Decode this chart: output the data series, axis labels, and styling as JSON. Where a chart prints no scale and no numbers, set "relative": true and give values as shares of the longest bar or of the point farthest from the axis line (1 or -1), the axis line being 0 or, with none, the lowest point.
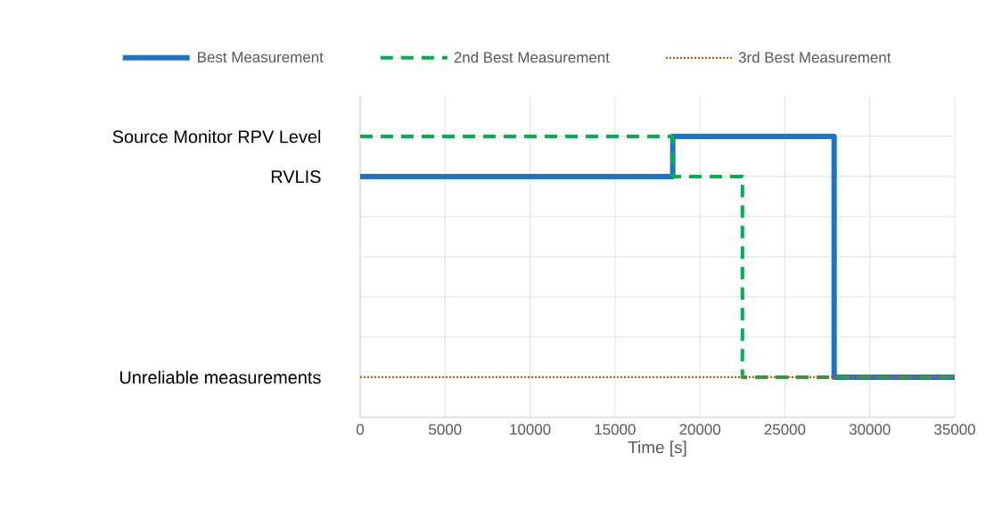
{
  "chart_data": {
    "type": "line",
    "xlabel": "Time [s]",
    "relative": true,
    "xlim": [
      0,
      35000
    ],
    "xticks": [
      0,
      5000,
      10000,
      15000,
      20000,
      25000,
      30000,
      35000
    ],
    "annotations": [
      "Source Monitor RPV Level",
      "RVLIS",
      "Unreliable measurements"
    ],
    "grid": true,
    "legend": "top",
    "series": [
      {
        "name": "Best Measurement",
        "color": "#1f72c4",
        "line_style": "solid",
        "x": [
          0,
          18400,
          18400,
          27900,
          27900,
          35000
        ],
        "values": [
          0.857,
          0.857,
          1,
          1,
          0.143,
          0.143
        ]
      },
      {
        "name": "2nd Best Measurement",
        "color": "#00b050",
        "line_style": "dashed",
        "x": [
          0,
          18400,
          18400,
          22500,
          22500,
          35000
        ],
        "values": [
          1,
          1,
          0.857,
          0.857,
          0.143,
          0.143
        ]
      },
      {
        "name": "3rd Best Measurement",
        "color": "#c55a11",
        "line_style": "dotted",
        "x": [
          0,
          35000
        ],
        "values": [
          0.143,
          0.143
        ]
      }
    ]
  }
}
